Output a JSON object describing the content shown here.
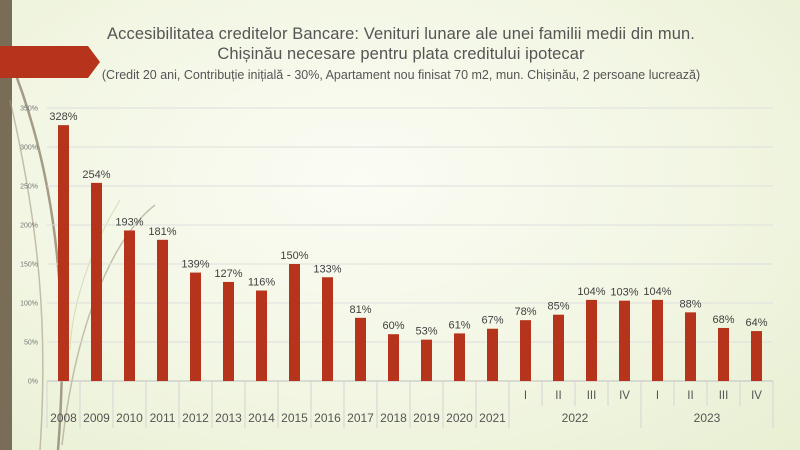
{
  "title": "Accesibilitatea  creditelor Bancare: Venituri lunare ale unei familii medii din mun. Chișinău necesare pentru plata creditului ipotecar",
  "subtitle": "(Credit 20 ani, Contribuție inițială - 30%, Apartament nou finisat 70 m2, mun. Chișinău, 2 persoane lucrează)",
  "colors": {
    "bar": "#b5341b",
    "accent_shape": "#b5341b",
    "left_bar": "#7a6d57",
    "background": "#f2f6e3"
  },
  "chart_data": {
    "type": "bar",
    "categories": [
      "2008",
      "2009",
      "2010",
      "2011",
      "2012",
      "2013",
      "2014",
      "2015",
      "2016",
      "2017",
      "2018",
      "2019",
      "2020",
      "2021",
      "I",
      "II",
      "III",
      "IV",
      "I",
      "II",
      "III",
      "IV"
    ],
    "values": [
      328,
      254,
      193,
      181,
      139,
      127,
      116,
      150,
      133,
      81,
      60,
      53,
      61,
      67,
      78,
      85,
      104,
      103,
      104,
      88,
      68,
      64
    ],
    "data_labels": [
      "328%",
      "254%",
      "193%",
      "181%",
      "139%",
      "127%",
      "116%",
      "150%",
      "133%",
      "81%",
      "60%",
      "53%",
      "61%",
      "67%",
      "78%",
      "85%",
      "104%",
      "103%",
      "104%",
      "88%",
      "68%",
      "64%"
    ],
    "group_labels": [
      {
        "label": "2022",
        "from_index": 14,
        "to_index": 17
      },
      {
        "label": "2023",
        "from_index": 18,
        "to_index": 21
      }
    ],
    "ylim": [
      0,
      350
    ],
    "yticks": [
      0,
      50,
      100,
      150,
      200,
      250,
      300,
      350
    ],
    "ytick_labels": [
      "0%",
      "50%",
      "100%",
      "150%",
      "200%",
      "250%",
      "300%",
      "350%"
    ],
    "grid": true,
    "legend": "none"
  }
}
